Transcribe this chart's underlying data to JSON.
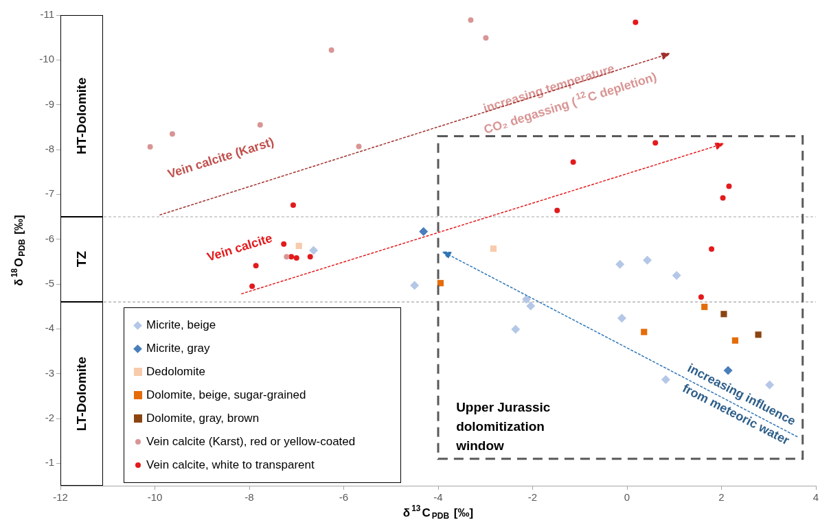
{
  "chart_data": {
    "type": "scatter",
    "xlabel": "δ$^{13}$C$_{PDB}$ [‰]",
    "ylabel": "δ$^{18}$O$_{PDB}$ [‰]",
    "xlim": [
      -12,
      4
    ],
    "ylim": [
      -0.5,
      -11
    ],
    "xticks": [
      -12,
      -10,
      -8,
      -6,
      -4,
      -2,
      0,
      2,
      4
    ],
    "yticks": [
      -11,
      -10,
      -9,
      -8,
      -7,
      -6,
      -5,
      -4,
      -3,
      -2,
      -1
    ],
    "grid": false,
    "legend": "bottom left",
    "series": [
      {
        "name": "Micrite, beige",
        "color": "#b4c7e7",
        "marker": "diamond",
        "x": [
          -6.64,
          -4.5,
          -0.15,
          0.43,
          1.05,
          -2.13,
          -2.04,
          -2.36,
          -0.11,
          0.82,
          3.02
        ],
        "values": [
          -5.75,
          -4.97,
          -5.44,
          -5.53,
          -5.19,
          -4.66,
          -4.51,
          -3.99,
          -4.24,
          -2.87,
          -2.75
        ]
      },
      {
        "name": "Micrite, gray",
        "color": "#4a7ebb",
        "marker": "diamond",
        "x": [
          -4.31,
          2.14
        ],
        "values": [
          -6.17,
          -3.07
        ]
      },
      {
        "name": "Dedolomite",
        "color": "#f8cbad",
        "marker": "square",
        "x": [
          -6.95,
          -2.83
        ],
        "values": [
          -5.85,
          -5.79
        ]
      },
      {
        "name": "Dolomite, beige, sugar-grained",
        "color": "#e46c0a",
        "marker": "square",
        "x": [
          -3.95,
          0.36,
          1.64,
          2.29
        ],
        "values": [
          -5.02,
          -3.93,
          -4.49,
          -3.74
        ]
      },
      {
        "name": "Dolomite, gray, brown",
        "color": "#8b4513",
        "marker": "square",
        "x": [
          2.05,
          2.78
        ],
        "values": [
          -4.33,
          -3.87
        ]
      },
      {
        "name": "Vein calcite (Karst), red or yellow-coated",
        "color": "#d99594",
        "marker": "circle",
        "x": [
          -10.1,
          -9.63,
          -7.77,
          -6.26,
          -5.68,
          -7.21,
          -3.31,
          -2.99
        ],
        "values": [
          -8.06,
          -8.35,
          -8.55,
          -10.22,
          -8.07,
          -5.61,
          -10.89,
          -10.49
        ]
      },
      {
        "name": "Vein calcite, white to transparent",
        "color": "#e31a1c",
        "marker": "circle",
        "x": [
          -7.07,
          -7.27,
          -7.11,
          -7.0,
          -6.71,
          -7.86,
          -7.94,
          0.18,
          0.6,
          -1.14,
          2.16,
          2.03,
          -1.48,
          1.79,
          1.57
        ],
        "values": [
          -6.76,
          -5.89,
          -5.61,
          -5.58,
          -5.61,
          -5.41,
          -4.95,
          -10.84,
          -8.15,
          -7.72,
          -7.18,
          -6.92,
          -6.64,
          -5.78,
          -4.71
        ]
      }
    ],
    "ref_lines": [
      {
        "axis": "y",
        "value": -6.5,
        "color": "#a6a6a6",
        "line_style": "dashed"
      },
      {
        "axis": "y",
        "value": -4.6,
        "color": "#a6a6a6",
        "line_style": "dashed"
      }
    ],
    "bands": [
      {
        "axis": "y",
        "from": -11,
        "to": -6.5,
        "label": "HT-Dolomite"
      },
      {
        "axis": "y",
        "from": -6.5,
        "to": -4.6,
        "label": "TZ"
      },
      {
        "axis": "y",
        "from": -4.6,
        "to": -0.5,
        "label": "LT-Dolomite"
      }
    ],
    "annotations": [
      "Vein calcite (Karst)",
      "Vein calcite",
      "increasing temperature",
      "CO₂ degassing ($^{12}$C depletion)",
      "increasing influence",
      "from meteoric water",
      "Upper Jurassic dolomitization window"
    ]
  }
}
